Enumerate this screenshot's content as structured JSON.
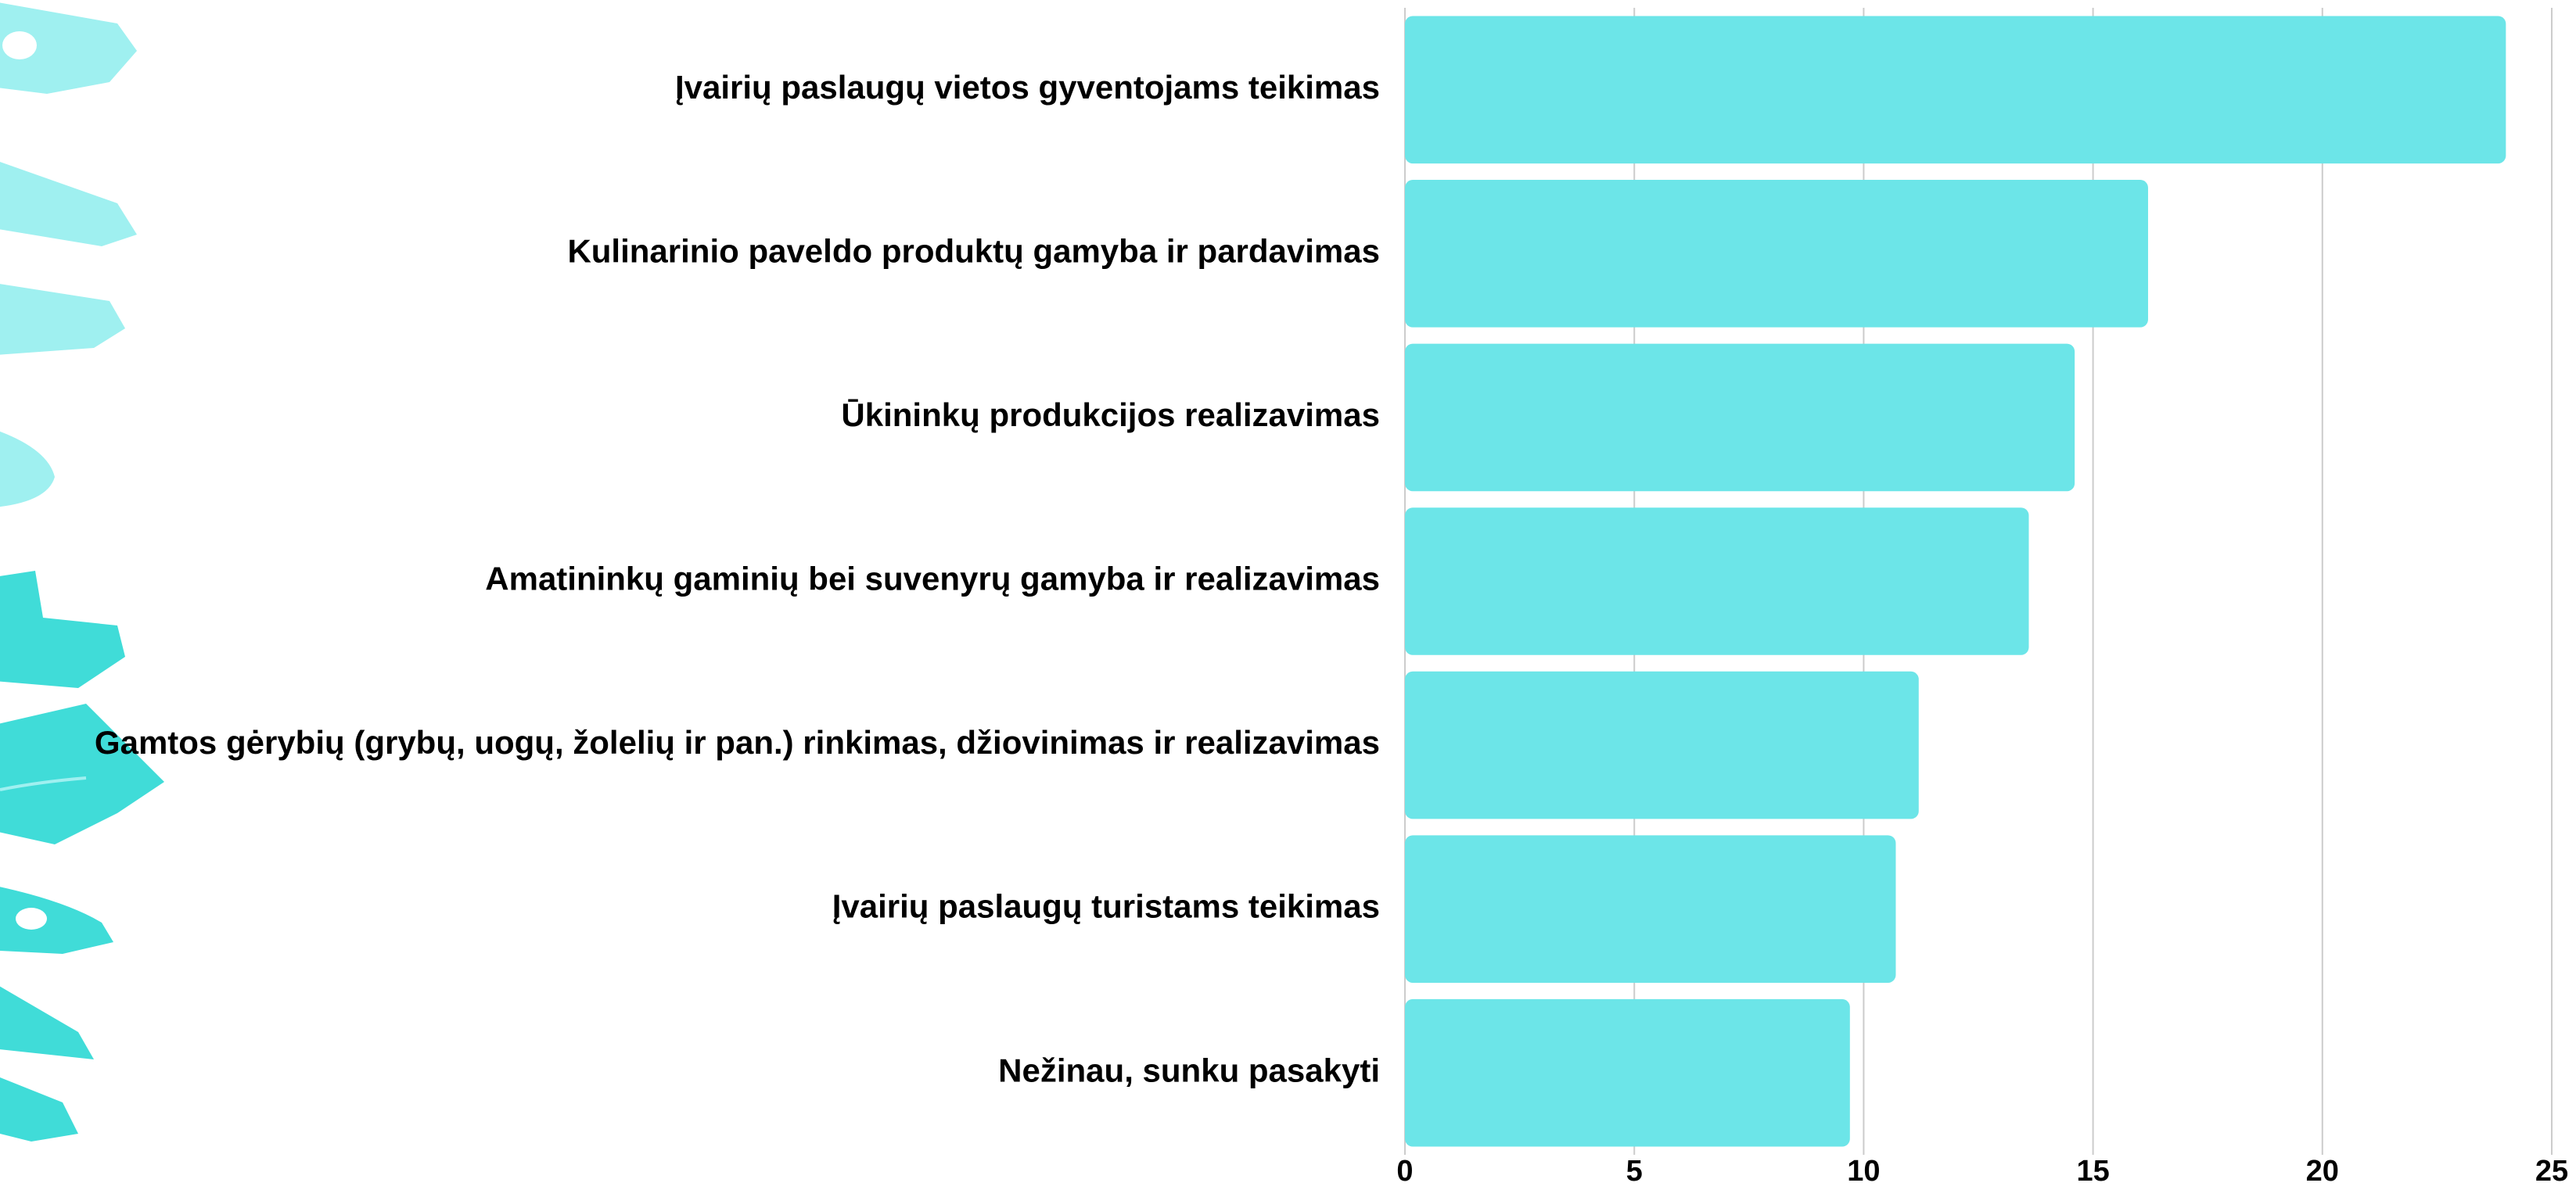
{
  "chart_data": {
    "type": "barh",
    "categories": [
      "Įvairių paslaugų vietos gyventojams teikimas",
      "Kulinarinio paveldo produktų gamyba ir pardavimas",
      "Ūkininkų produkcijos realizavimas",
      "Amatininkų gaminių bei suvenyrų gamyba ir realizavimas",
      "Gamtos gėrybių (grybų, uogų, žolelių ir pan.) rinkimas, džiovinimas ir realizavimas",
      "Įvairių paslaugų turistams teikimas",
      "Nežinau, sunku pasakyti"
    ],
    "values": [
      24,
      16.2,
      14.6,
      13.6,
      11.2,
      10.7,
      9.7
    ],
    "color": "#6ce5e8",
    "xlim": [
      0,
      25
    ],
    "xticks": [
      0,
      5,
      10,
      15,
      20,
      25
    ],
    "grid": true
  }
}
